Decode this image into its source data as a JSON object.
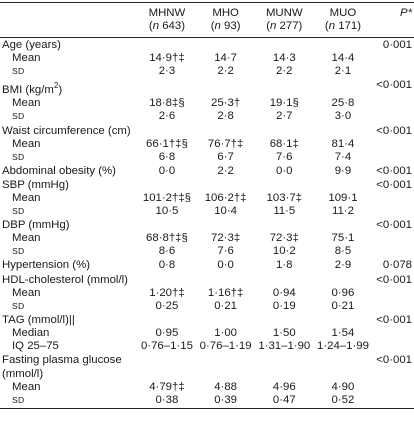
{
  "header": {
    "cols": [
      {
        "name": "MHNW",
        "n": "(n 643)"
      },
      {
        "name": "MHO",
        "n": "(n 93)"
      },
      {
        "name": "MUNW",
        "n": "(n 277)"
      },
      {
        "name": "MUO",
        "n": "(n 171)"
      }
    ],
    "p_label": "P*"
  },
  "rows": [
    {
      "label": "Age (years)",
      "p": "0·001",
      "sub": false
    },
    {
      "label": "Mean",
      "sub": true,
      "sc": false,
      "v": [
        "14·9†‡",
        "14·7",
        "14·3",
        "14·4"
      ]
    },
    {
      "label": "SD",
      "sub": true,
      "sc": true,
      "v": [
        "2·3",
        "2·2",
        "2·2",
        "2·1"
      ]
    },
    {
      "label": "BMI (kg/m2)",
      "p": "<0·001",
      "sub": false
    },
    {
      "label": "Mean",
      "sub": true,
      "sc": false,
      "v": [
        "18·8‡§",
        "25·3†",
        "19·1§",
        "25·8"
      ]
    },
    {
      "label": "SD",
      "sub": true,
      "sc": true,
      "v": [
        "2·6",
        "2·8",
        "2·7",
        "3·0"
      ]
    },
    {
      "label": "Waist circumference (cm)",
      "p": "<0·001",
      "sub": false
    },
    {
      "label": "Mean",
      "sub": true,
      "sc": false,
      "v": [
        "66·1†‡§",
        "76·7†‡",
        "68·1‡",
        "81·4"
      ]
    },
    {
      "label": "SD",
      "sub": true,
      "sc": true,
      "v": [
        "6·8",
        "6·7",
        "7·6",
        "7·4"
      ]
    },
    {
      "label": "Abdominal obesity (%)",
      "p": "<0·001",
      "sub": false,
      "v": [
        "0·0",
        "2·2",
        "0·0",
        "9·9"
      ]
    },
    {
      "label": "SBP (mmHg)",
      "p": "<0·001",
      "sub": false
    },
    {
      "label": "Mean",
      "sub": true,
      "sc": false,
      "v": [
        "101·2†‡§",
        "106·2†‡",
        "103·7‡",
        "109·1"
      ]
    },
    {
      "label": "SD",
      "sub": true,
      "sc": true,
      "v": [
        "10·5",
        "10·4",
        "11·5",
        "11·2"
      ]
    },
    {
      "label": "DBP (mmHg)",
      "p": "<0·001",
      "sub": false
    },
    {
      "label": "Mean",
      "sub": true,
      "sc": false,
      "v": [
        "68·8†‡§",
        "72·3‡",
        "72·3‡",
        "75·1"
      ]
    },
    {
      "label": "SD",
      "sub": true,
      "sc": true,
      "v": [
        "8·6",
        "7·6",
        "10·2",
        "8·5"
      ]
    },
    {
      "label": "Hypertension (%)",
      "p": "0·078",
      "sub": false,
      "v": [
        "0·8",
        "0·0",
        "1·8",
        "2·9"
      ]
    },
    {
      "label": "HDL-cholesterol (mmol/l)",
      "p": "<0·001",
      "sub": false
    },
    {
      "label": "Mean",
      "sub": true,
      "sc": false,
      "v": [
        "1·20†‡",
        "1·16†‡",
        "0·94",
        "0·96"
      ]
    },
    {
      "label": "SD",
      "sub": true,
      "sc": true,
      "v": [
        "0·25",
        "0·21",
        "0·19",
        "0·21"
      ]
    },
    {
      "label": "TAG (mmol/l)||",
      "p": "<0·001",
      "sub": false
    },
    {
      "label": "Median",
      "sub": true,
      "sc": false,
      "v": [
        "0·95",
        "1·00",
        "1·50",
        "1·54"
      ]
    },
    {
      "label": "IQ 25–75",
      "sub": true,
      "sc": false,
      "v": [
        "0·76–1·15",
        "0·76–1·19",
        "1·31–1·90",
        "1·24–1·99"
      ]
    },
    {
      "label": "Fasting plasma glucose",
      "p": "<0·001",
      "sub": false
    },
    {
      "label": "(mmol/l)",
      "sub": false
    },
    {
      "label": "Mean",
      "sub": true,
      "sc": false,
      "v": [
        "4·79†‡",
        "4·88",
        "4·96",
        "4·90"
      ]
    },
    {
      "label": "SD",
      "sub": true,
      "sc": true,
      "v": [
        "0·38",
        "0·39",
        "0·47",
        "0·52"
      ]
    }
  ]
}
